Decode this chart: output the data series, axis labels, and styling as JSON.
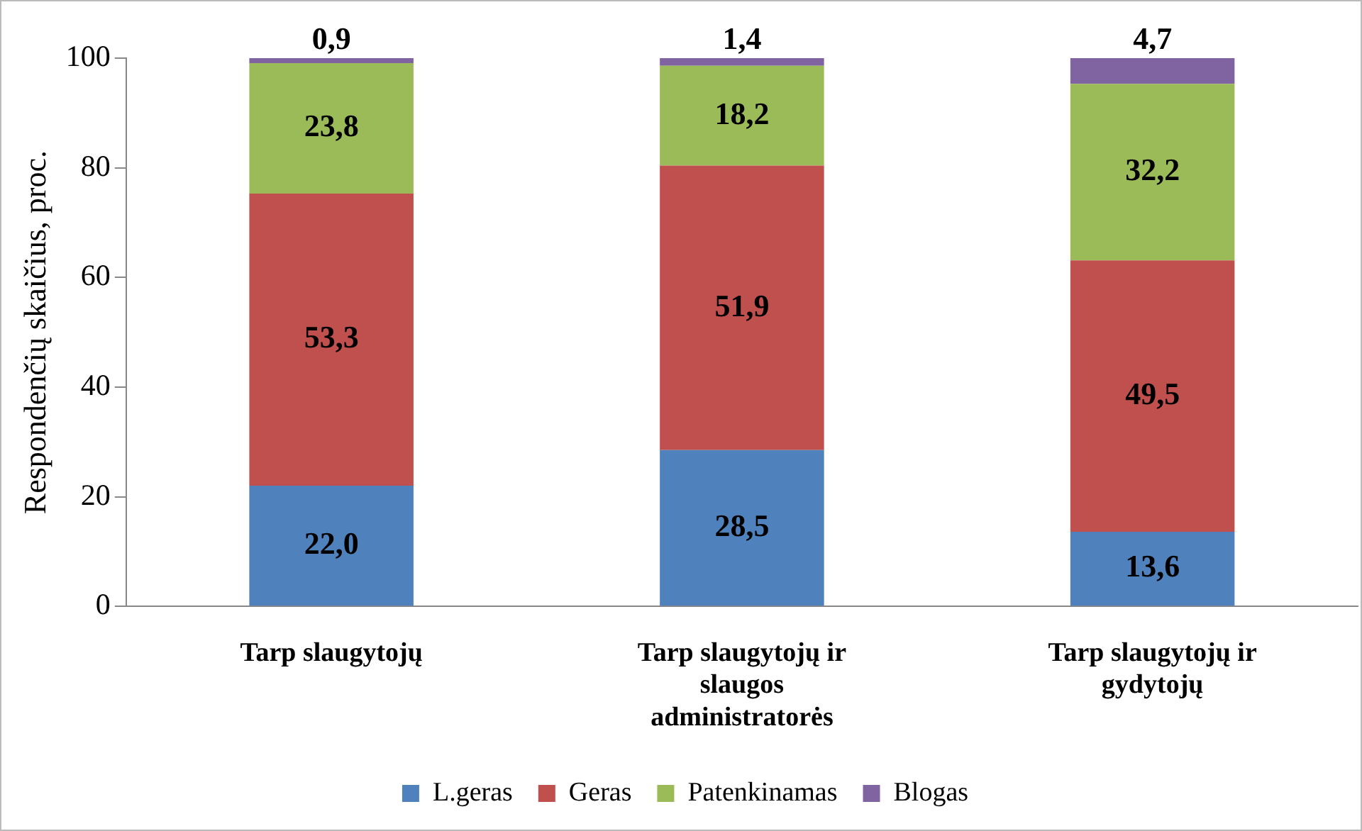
{
  "chart_data": {
    "type": "bar",
    "stacked": true,
    "ylabel": "Respondenčių skaičius, proc.",
    "categories": [
      "Tarp slaugytojų",
      "Tarp slaugytojų ir slaugos administratorės",
      "Tarp slaugytojų ir gydytojų"
    ],
    "series": [
      {
        "name": "L.geras",
        "color": "#4f81bd",
        "values": [
          22.0,
          28.5,
          13.6
        ],
        "value_labels": [
          "22,0",
          "28,5",
          "13,6"
        ]
      },
      {
        "name": "Geras",
        "color": "#c0504d",
        "values": [
          53.3,
          51.9,
          49.5
        ],
        "value_labels": [
          "53,3",
          "51,9",
          "49,5"
        ]
      },
      {
        "name": "Patenkinamas",
        "color": "#9bbb59",
        "values": [
          23.8,
          18.2,
          32.2
        ],
        "value_labels": [
          "23,8",
          "18,2",
          "32,2"
        ]
      },
      {
        "name": "Blogas",
        "color": "#8064a2",
        "values": [
          0.9,
          1.4,
          4.7
        ],
        "value_labels": [
          "0,9",
          "1,4",
          "4,7"
        ]
      }
    ],
    "ylim": [
      0,
      100
    ],
    "yticks": [
      0,
      20,
      40,
      60,
      80,
      100
    ],
    "grid": false,
    "legend": "bottom"
  }
}
